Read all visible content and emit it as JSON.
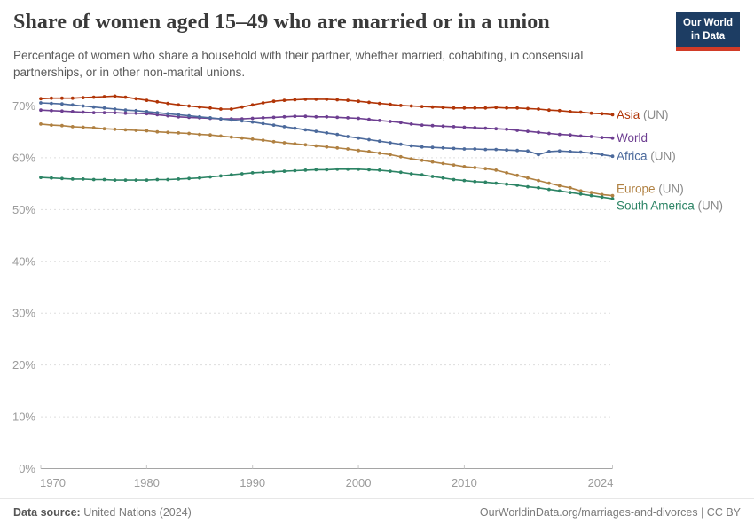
{
  "header": {
    "title": "Share of women aged 15–49 who are married or in a union",
    "subtitle": "Percentage of women who share a household with their partner, whether married, cohabiting, in consensual partnerships, or in other non-marital unions.",
    "logo": {
      "line1": "Our World",
      "line2": "in Data"
    }
  },
  "footer": {
    "datasource_label": "Data source:",
    "datasource_value": "United Nations (2024)",
    "attribution": "OurWorldinData.org/marriages-and-divorces | CC BY"
  },
  "colors": {
    "grid": "#dddddd",
    "axis": "#a5a5a5",
    "tick_label": "#9b9b9b",
    "label_suffix": "#8a8a8a",
    "logo_bg": "#1d3d63",
    "logo_accent": "#d13b27"
  },
  "chart_data": {
    "type": "line",
    "title": "Share of women aged 15–49 who are married or in a union",
    "xlabel": "",
    "ylabel": "",
    "grid": "horizontal-dashed",
    "legend_position": "right-of-line-ends",
    "ylim": [
      0,
      73
    ],
    "ytick_values": [
      0,
      10,
      20,
      30,
      40,
      50,
      60,
      70
    ],
    "ytick_labels": [
      "0%",
      "10%",
      "20%",
      "30%",
      "40%",
      "50%",
      "60%",
      "70%"
    ],
    "xticks": [
      1970,
      1980,
      1990,
      2000,
      2010,
      2024
    ],
    "years": [
      1970,
      1971,
      1972,
      1973,
      1974,
      1975,
      1976,
      1977,
      1978,
      1979,
      1980,
      1981,
      1982,
      1983,
      1984,
      1985,
      1986,
      1987,
      1988,
      1989,
      1990,
      1991,
      1992,
      1993,
      1994,
      1995,
      1996,
      1997,
      1998,
      1999,
      2000,
      2001,
      2002,
      2003,
      2004,
      2005,
      2006,
      2007,
      2008,
      2009,
      2010,
      2011,
      2012,
      2013,
      2014,
      2015,
      2016,
      2017,
      2018,
      2019,
      2020,
      2021,
      2022,
      2023,
      2024
    ],
    "series": [
      {
        "name": "Asia",
        "suffix": " (UN)",
        "color": "#B13507",
        "values": [
          71.4,
          71.5,
          71.5,
          71.5,
          71.6,
          71.7,
          71.8,
          71.9,
          71.7,
          71.4,
          71.1,
          70.8,
          70.5,
          70.2,
          70.0,
          69.8,
          69.6,
          69.4,
          69.4,
          69.8,
          70.2,
          70.6,
          70.9,
          71.1,
          71.2,
          71.3,
          71.3,
          71.3,
          71.2,
          71.1,
          70.9,
          70.7,
          70.5,
          70.3,
          70.1,
          70.0,
          69.9,
          69.8,
          69.7,
          69.6,
          69.6,
          69.6,
          69.6,
          69.7,
          69.6,
          69.6,
          69.5,
          69.4,
          69.2,
          69.1,
          68.9,
          68.8,
          68.6,
          68.5,
          68.3
        ]
      },
      {
        "name": "World",
        "suffix": "",
        "color": "#6D3E91",
        "values": [
          69.2,
          69.1,
          69.0,
          68.9,
          68.8,
          68.7,
          68.7,
          68.7,
          68.6,
          68.6,
          68.5,
          68.3,
          68.1,
          67.9,
          67.8,
          67.7,
          67.6,
          67.5,
          67.5,
          67.5,
          67.6,
          67.7,
          67.8,
          67.9,
          68.0,
          68.0,
          67.9,
          67.9,
          67.8,
          67.7,
          67.6,
          67.4,
          67.2,
          67.0,
          66.8,
          66.5,
          66.3,
          66.2,
          66.1,
          66.0,
          65.9,
          65.8,
          65.7,
          65.6,
          65.5,
          65.3,
          65.1,
          64.9,
          64.7,
          64.5,
          64.4,
          64.2,
          64.1,
          63.9,
          63.8
        ]
      },
      {
        "name": "Africa",
        "suffix": " (UN)",
        "color": "#4C6A9C",
        "values": [
          70.6,
          70.5,
          70.4,
          70.2,
          70.0,
          69.8,
          69.6,
          69.4,
          69.2,
          69.1,
          68.9,
          68.7,
          68.5,
          68.3,
          68.1,
          67.9,
          67.7,
          67.5,
          67.3,
          67.1,
          66.9,
          66.6,
          66.3,
          66.0,
          65.7,
          65.4,
          65.1,
          64.8,
          64.5,
          64.1,
          63.8,
          63.5,
          63.2,
          62.9,
          62.6,
          62.3,
          62.1,
          62.0,
          61.9,
          61.8,
          61.7,
          61.7,
          61.6,
          61.6,
          61.5,
          61.4,
          61.3,
          60.6,
          61.2,
          61.3,
          61.2,
          61.1,
          60.9,
          60.6,
          60.3
        ]
      },
      {
        "name": "Europe",
        "suffix": " (UN)",
        "color": "#B08142",
        "values": [
          66.5,
          66.3,
          66.2,
          66.0,
          65.9,
          65.8,
          65.6,
          65.5,
          65.4,
          65.3,
          65.2,
          65.0,
          64.9,
          64.8,
          64.7,
          64.5,
          64.4,
          64.2,
          64.0,
          63.8,
          63.6,
          63.4,
          63.1,
          62.9,
          62.7,
          62.5,
          62.3,
          62.1,
          61.9,
          61.7,
          61.4,
          61.2,
          60.9,
          60.6,
          60.2,
          59.8,
          59.5,
          59.2,
          58.9,
          58.6,
          58.3,
          58.1,
          57.9,
          57.6,
          57.1,
          56.6,
          56.1,
          55.6,
          55.1,
          54.6,
          54.2,
          53.6,
          53.3,
          52.9,
          52.7
        ]
      },
      {
        "name": "South America",
        "suffix": " (UN)",
        "color": "#2C8465",
        "values": [
          56.2,
          56.1,
          56.0,
          55.9,
          55.9,
          55.8,
          55.8,
          55.7,
          55.7,
          55.7,
          55.7,
          55.8,
          55.8,
          55.9,
          56.0,
          56.1,
          56.3,
          56.5,
          56.7,
          56.9,
          57.1,
          57.2,
          57.3,
          57.4,
          57.5,
          57.6,
          57.7,
          57.7,
          57.8,
          57.8,
          57.8,
          57.7,
          57.6,
          57.4,
          57.2,
          56.9,
          56.7,
          56.4,
          56.1,
          55.8,
          55.6,
          55.4,
          55.3,
          55.1,
          54.9,
          54.7,
          54.4,
          54.2,
          53.9,
          53.6,
          53.3,
          53.0,
          52.7,
          52.4,
          52.1
        ]
      }
    ]
  }
}
